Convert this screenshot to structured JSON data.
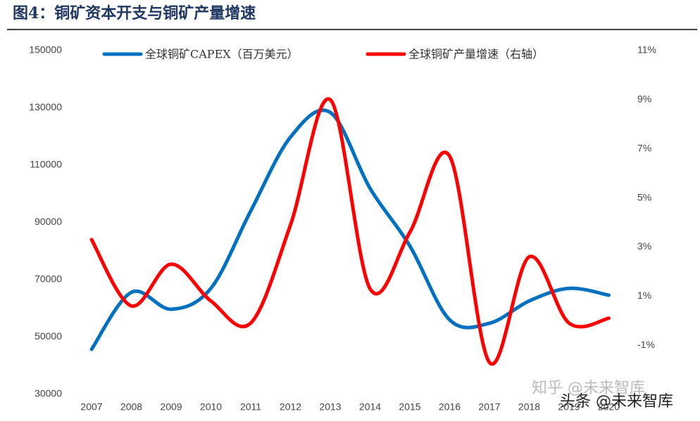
{
  "chart_data": {
    "type": "line",
    "title": "图4：铜矿资本开支与铜矿产量增速",
    "categories": [
      "2007",
      "2008",
      "2009",
      "2010",
      "2011",
      "2012",
      "2013",
      "2014",
      "2015",
      "2016",
      "2017",
      "2018",
      "2019",
      "2020"
    ],
    "series": [
      {
        "name": "全球铜矿CAPEX（百万美元）",
        "color": "#0070c0",
        "values": [
          45700,
          65600,
          59700,
          67000,
          94000,
          119800,
          128400,
          101900,
          81800,
          56000,
          54800,
          62600,
          67000,
          64600
        ]
      },
      {
        "name": "全球铜矿产量增速（右轴）",
        "color": "#ff0000",
        "axis": "y2",
        "values": [
          3.3,
          0.6,
          2.3,
          0.8,
          -0.1,
          3.9,
          9.0,
          1.3,
          3.6,
          6.7,
          -1.7,
          2.6,
          -0.1,
          0.1
        ]
      }
    ],
    "ylim": [
      30000,
      150000
    ],
    "yticks": [
      30000,
      50000,
      70000,
      90000,
      110000,
      130000,
      150000
    ],
    "y2lim": [
      -3,
      11
    ],
    "y2ticks": [
      {
        "value": -1,
        "label": "-1%"
      },
      {
        "value": 1,
        "label": "1%"
      },
      {
        "value": 3,
        "label": "3%"
      },
      {
        "value": 5,
        "label": "5%"
      },
      {
        "value": 7,
        "label": "7%"
      },
      {
        "value": 9,
        "label": "9%"
      },
      {
        "value": 11,
        "label": "11%"
      }
    ],
    "legend": "top",
    "watermarks": [
      "知乎 @未来智库",
      "头条 @未来智库"
    ]
  }
}
